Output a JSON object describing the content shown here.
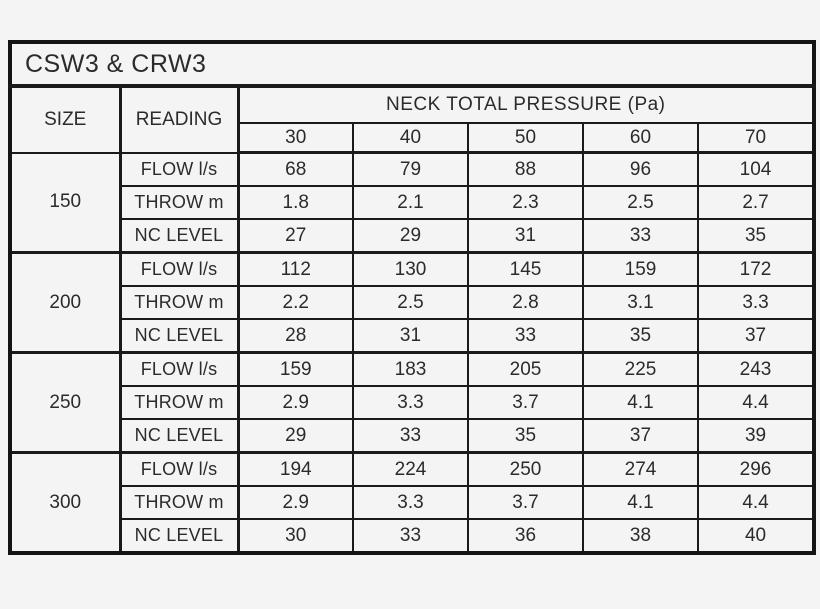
{
  "page": {
    "background_color": "#f5f4f4"
  },
  "table": {
    "title": "CSW3 & CRW3",
    "header": {
      "size": "SIZE",
      "reading": "READING",
      "pressure_group": "NECK TOTAL PRESSURE (Pa)",
      "pressure_columns": [
        "30",
        "40",
        "50",
        "60",
        "70"
      ]
    },
    "groups": [
      {
        "size": "150",
        "rows": [
          {
            "reading": "FLOW l/s",
            "values": [
              "68",
              "79",
              "88",
              "96",
              "104"
            ]
          },
          {
            "reading": "THROW m",
            "values": [
              "1.8",
              "2.1",
              "2.3",
              "2.5",
              "2.7"
            ]
          },
          {
            "reading": "NC LEVEL",
            "values": [
              "27",
              "29",
              "31",
              "33",
              "35"
            ]
          }
        ]
      },
      {
        "size": "200",
        "rows": [
          {
            "reading": "FLOW l/s",
            "values": [
              "112",
              "130",
              "145",
              "159",
              "172"
            ]
          },
          {
            "reading": "THROW m",
            "values": [
              "2.2",
              "2.5",
              "2.8",
              "3.1",
              "3.3"
            ]
          },
          {
            "reading": "NC LEVEL",
            "values": [
              "28",
              "31",
              "33",
              "35",
              "37"
            ]
          }
        ]
      },
      {
        "size": "250",
        "rows": [
          {
            "reading": "FLOW l/s",
            "values": [
              "159",
              "183",
              "205",
              "225",
              "243"
            ]
          },
          {
            "reading": "THROW m",
            "values": [
              "2.9",
              "3.3",
              "3.7",
              "4.1",
              "4.4"
            ]
          },
          {
            "reading": "NC LEVEL",
            "values": [
              "29",
              "33",
              "35",
              "37",
              "39"
            ]
          }
        ]
      },
      {
        "size": "300",
        "rows": [
          {
            "reading": "FLOW l/s",
            "values": [
              "194",
              "224",
              "250",
              "274",
              "296"
            ]
          },
          {
            "reading": "THROW m",
            "values": [
              "2.9",
              "3.3",
              "3.7",
              "4.1",
              "4.4"
            ]
          },
          {
            "reading": "NC LEVEL",
            "values": [
              "30",
              "33",
              "36",
              "38",
              "40"
            ]
          }
        ]
      }
    ],
    "colors": {
      "border": "#141414",
      "text": "#2b2b2b",
      "cell_background": "#f5f4f4"
    }
  }
}
